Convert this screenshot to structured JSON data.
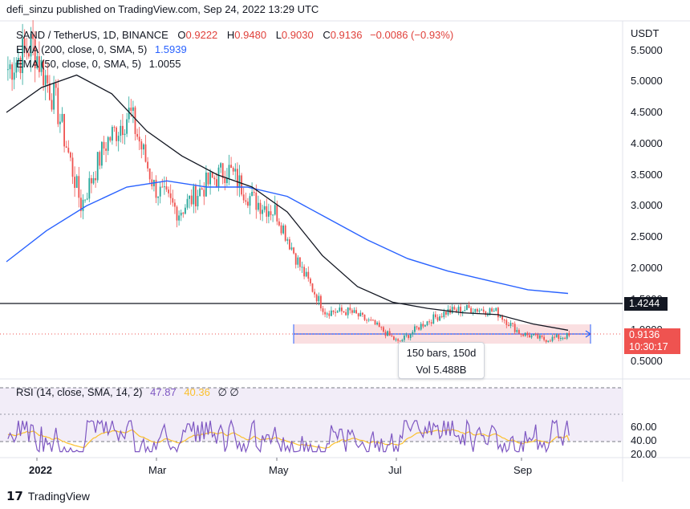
{
  "header": {
    "published_by": "defi_sinzu published on TradingView.com, Sep 24, 2022 13:29 UTC"
  },
  "legend": {
    "symbol": "SAND / TetherUS, 1D, BINANCE",
    "open_label": "O",
    "open": "0.9222",
    "high_label": "H",
    "high": "0.9480",
    "low_label": "L",
    "low": "0.9030",
    "close_label": "C",
    "close": "0.9136",
    "change": "−0.0086 (−0.93%)",
    "ema200_label": "EMA (200, close, 0, SMA, 5)",
    "ema200_value": "1.5939",
    "ema50_label": "EMA (50, close, 0, SMA, 5)",
    "ema50_value": "1.0055"
  },
  "price_axis": {
    "currency": "USDT",
    "ticks": [
      "5.5000",
      "5.0000",
      "4.5000",
      "4.0000",
      "3.5000",
      "3.0000",
      "2.5000",
      "2.0000",
      "1.5000",
      "1.0000",
      "0.5000"
    ],
    "horizontal_line_label": "1.4244",
    "current_price_label": "0.9136",
    "countdown_label": "10:30:17"
  },
  "measure_tool": {
    "bars": "150 bars, 150d",
    "volume": "Vol 5.488B"
  },
  "rsi_legend": {
    "label": "RSI (14, close, SMA, 14, 2)",
    "rsi_value": "47.87",
    "sma_value": "40.36",
    "extra": "∅ ∅"
  },
  "rsi_axis": {
    "ticks": [
      "60.00",
      "40.00",
      "20.00"
    ]
  },
  "time_axis": {
    "labels": [
      "2022",
      "Mar",
      "May",
      "Jul",
      "Sep"
    ]
  },
  "footer": {
    "brand": "TradingView"
  },
  "colors": {
    "up": "#26a69a",
    "down": "#ef5350",
    "ema200": "#2962ff",
    "ema50": "#131722",
    "rsi": "#7e57c2",
    "rsi_sma": "#fbc02d",
    "range_fill": "#f9d9dc"
  },
  "chart_data": {
    "type": "candlestick",
    "title": "SAND / TetherUS, 1D, BINANCE",
    "ylabel": "USDT",
    "ylim": [
      0.3,
      5.8
    ],
    "x_labels": [
      "2022",
      "Mar",
      "May",
      "Jul",
      "Sep"
    ],
    "horizontal_line": 1.4244,
    "last_close": 0.9136,
    "range_box": {
      "from": "May",
      "to": "Sep",
      "low": 0.78,
      "high": 1.1
    },
    "price_path": [
      [
        5.2,
        "start"
      ],
      [
        5.6,
        "early Jan"
      ],
      [
        4.6,
        "mid Jan"
      ],
      [
        3.0,
        "late Jan"
      ],
      [
        4.0,
        "early Feb"
      ],
      [
        4.5,
        "mid Feb"
      ],
      [
        3.3,
        "late Feb"
      ],
      [
        2.9,
        "early Mar"
      ],
      [
        3.3,
        "late Mar"
      ],
      [
        3.6,
        "early Apr"
      ],
      [
        3.1,
        "mid Apr"
      ],
      [
        2.9,
        "late Apr"
      ],
      [
        2.0,
        "early May"
      ],
      [
        1.3,
        "mid May"
      ],
      [
        1.3,
        "late May"
      ],
      [
        1.1,
        "early Jun"
      ],
      [
        0.8,
        "mid Jun"
      ],
      [
        1.1,
        "late Jun"
      ],
      [
        1.3,
        "mid Jul"
      ],
      [
        1.35,
        "early Aug"
      ],
      [
        1.3,
        "mid Aug"
      ],
      [
        0.95,
        "late Aug"
      ],
      [
        0.85,
        "mid Sep"
      ],
      [
        0.91,
        "end"
      ]
    ],
    "ema200_path": [
      2.1,
      2.6,
      3.0,
      3.3,
      3.4,
      3.3,
      3.3,
      3.15,
      2.8,
      2.45,
      2.15,
      1.95,
      1.8,
      1.65,
      1.59
    ],
    "ema50_path": [
      4.5,
      4.9,
      5.1,
      4.8,
      4.2,
      3.8,
      3.5,
      3.3,
      2.9,
      2.2,
      1.7,
      1.45,
      1.35,
      1.28,
      1.25,
      1.1,
      1.0
    ],
    "rsi": {
      "ylim": [
        20,
        75
      ],
      "overbought": 70,
      "oversold": 30,
      "middle": 50,
      "last": 47.87,
      "sma_last": 40.36
    }
  }
}
